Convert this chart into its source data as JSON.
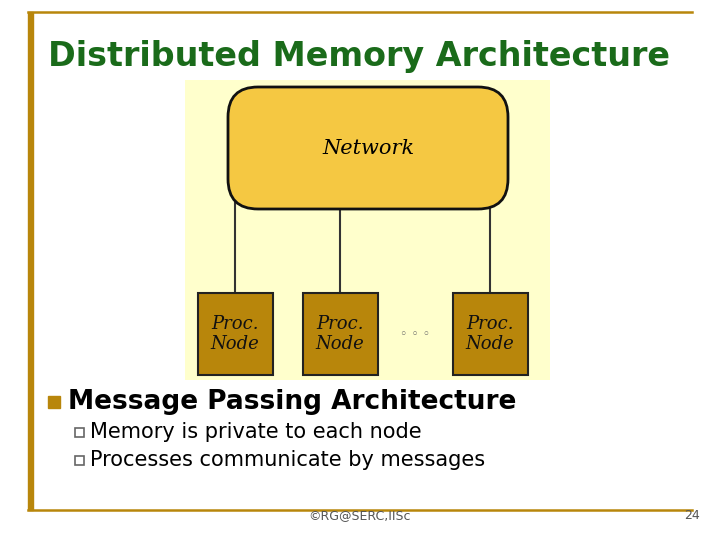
{
  "title": "Distributed Memory Architecture",
  "title_color": "#1a6b1a",
  "title_fontsize": 24,
  "bg_color": "#ffffff",
  "diagram_bg_color": "#ffffcc",
  "network_fill": "#f5c518",
  "network_fill_light": "#f5c842",
  "network_edge": "#111111",
  "network_text": "Network",
  "proc_fill": "#b8860b",
  "proc_edge": "#222222",
  "proc_texts": [
    "Proc.\nNode",
    "Proc.\nNode",
    "Proc.\nNode"
  ],
  "dots_text": "◦ ◦ ◦",
  "bullet_color": "#b8860b",
  "bullet_text": "Message Passing Architecture",
  "bullet_fontsize": 19,
  "sub_bullets": [
    "Memory is private to each node",
    "Processes communicate by messages"
  ],
  "sub_fontsize": 15,
  "footer_text": "©RG@SERC,IISc",
  "footer_page": "24",
  "border_color": "#b8860b"
}
